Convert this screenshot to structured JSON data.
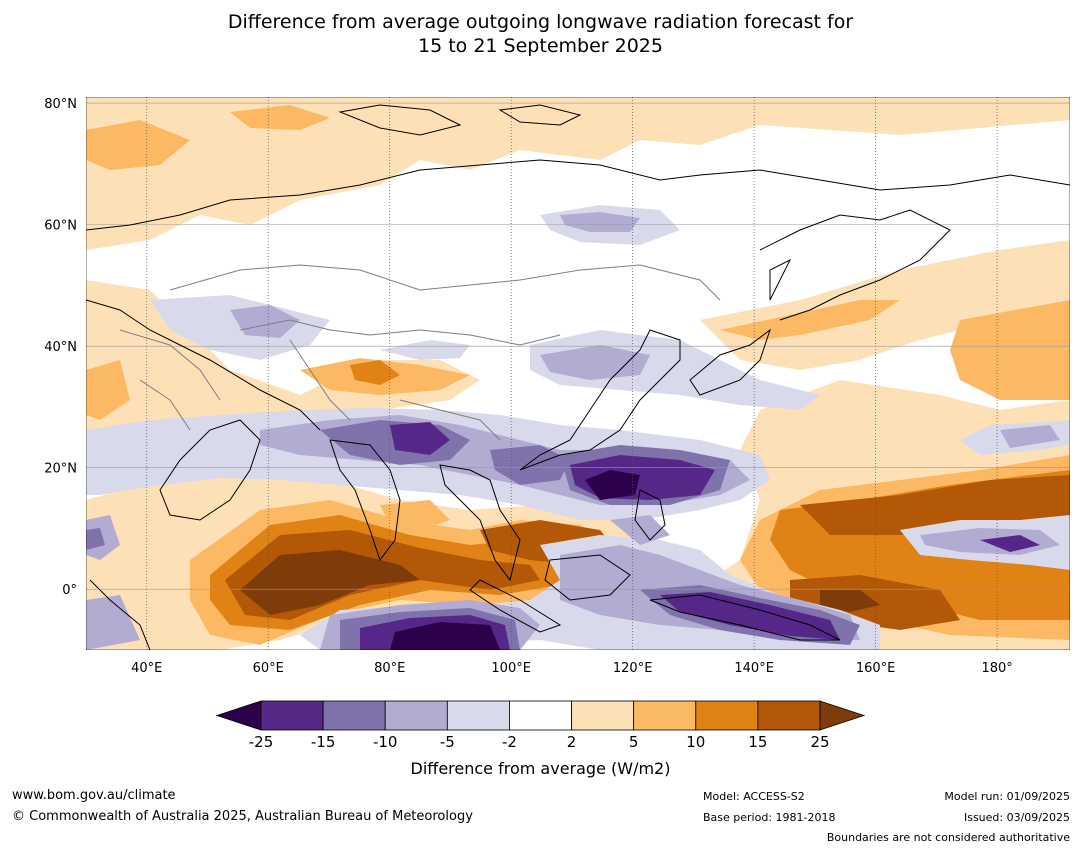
{
  "title": {
    "line1": "Difference from average outgoing longwave radiation forecast for",
    "line2": "15 to 21 September 2025"
  },
  "map": {
    "lat_labels": [
      "80°N",
      "60°N",
      "40°N",
      "20°N",
      "0°"
    ],
    "lon_labels": [
      "40°E",
      "60°E",
      "80°E",
      "100°E",
      "120°E",
      "140°E",
      "160°E",
      "180°"
    ],
    "extent": {
      "lon_min": 30,
      "lon_max": 192,
      "lat_min": -10,
      "lat_max": 81
    },
    "grid_lons": [
      40,
      60,
      80,
      100,
      120,
      140,
      160,
      180
    ],
    "grid_lats": [
      80,
      60,
      40,
      20,
      0
    ],
    "colors": {
      "ocean_white": "#ffffff",
      "coast": "#000000",
      "boundary": "#7f7f7f"
    }
  },
  "colorbar": {
    "levels": [
      "-25",
      "-15",
      "-10",
      "-5",
      "-2",
      "2",
      "5",
      "10",
      "15",
      "25"
    ],
    "colors": [
      "#2d004b",
      "#542788",
      "#8073ac",
      "#b2abd2",
      "#d8daeb",
      "#ffffff",
      "#fee0b6",
      "#fdb863",
      "#e08214",
      "#b35806",
      "#7f3b08"
    ],
    "title": "Difference from average (W/m2)"
  },
  "footer": {
    "website": "www.bom.gov.au/climate",
    "copyright": "© Commonwealth of Australia 2025, Australian Bureau of Meteorology",
    "model": "Model: ACCESS-S2",
    "base_period": "Base period: 1981-2018",
    "model_run": "Model run: 01/09/2025",
    "issued": "Issued: 03/09/2025",
    "disclaimer": "Boundaries are not considered authoritative"
  }
}
